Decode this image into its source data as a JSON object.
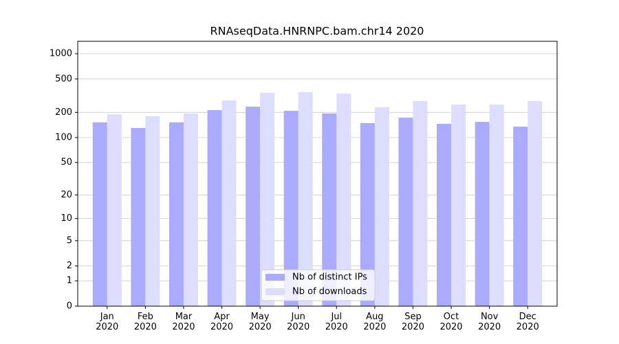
{
  "chart_data": {
    "type": "bar",
    "title": "RNAseqData.HNRNPC.bam.chr14 2020",
    "categories": [
      "Jan 2020",
      "Feb 2020",
      "Mar 2020",
      "Apr 2020",
      "May 2020",
      "Jun 2020",
      "Jul 2020",
      "Aug 2020",
      "Sep 2020",
      "Oct 2020",
      "Nov 2020",
      "Dec 2020"
    ],
    "series": [
      {
        "name": "Nb of distinct IPs",
        "color": "#aaaaff",
        "values": [
          152,
          130,
          152,
          213,
          234,
          209,
          194,
          149,
          173,
          146,
          154,
          135
        ]
      },
      {
        "name": "Nb of downloads",
        "color": "#ddddff",
        "values": [
          190,
          180,
          194,
          278,
          342,
          348,
          335,
          230,
          272,
          248,
          248,
          272
        ]
      }
    ],
    "y_scale": "log1p",
    "ylim": [
      0,
      1405
    ],
    "yticks": [
      0,
      1,
      2,
      5,
      10,
      20,
      50,
      100,
      200,
      500,
      1000
    ],
    "grid": true,
    "legend": "lower center"
  }
}
